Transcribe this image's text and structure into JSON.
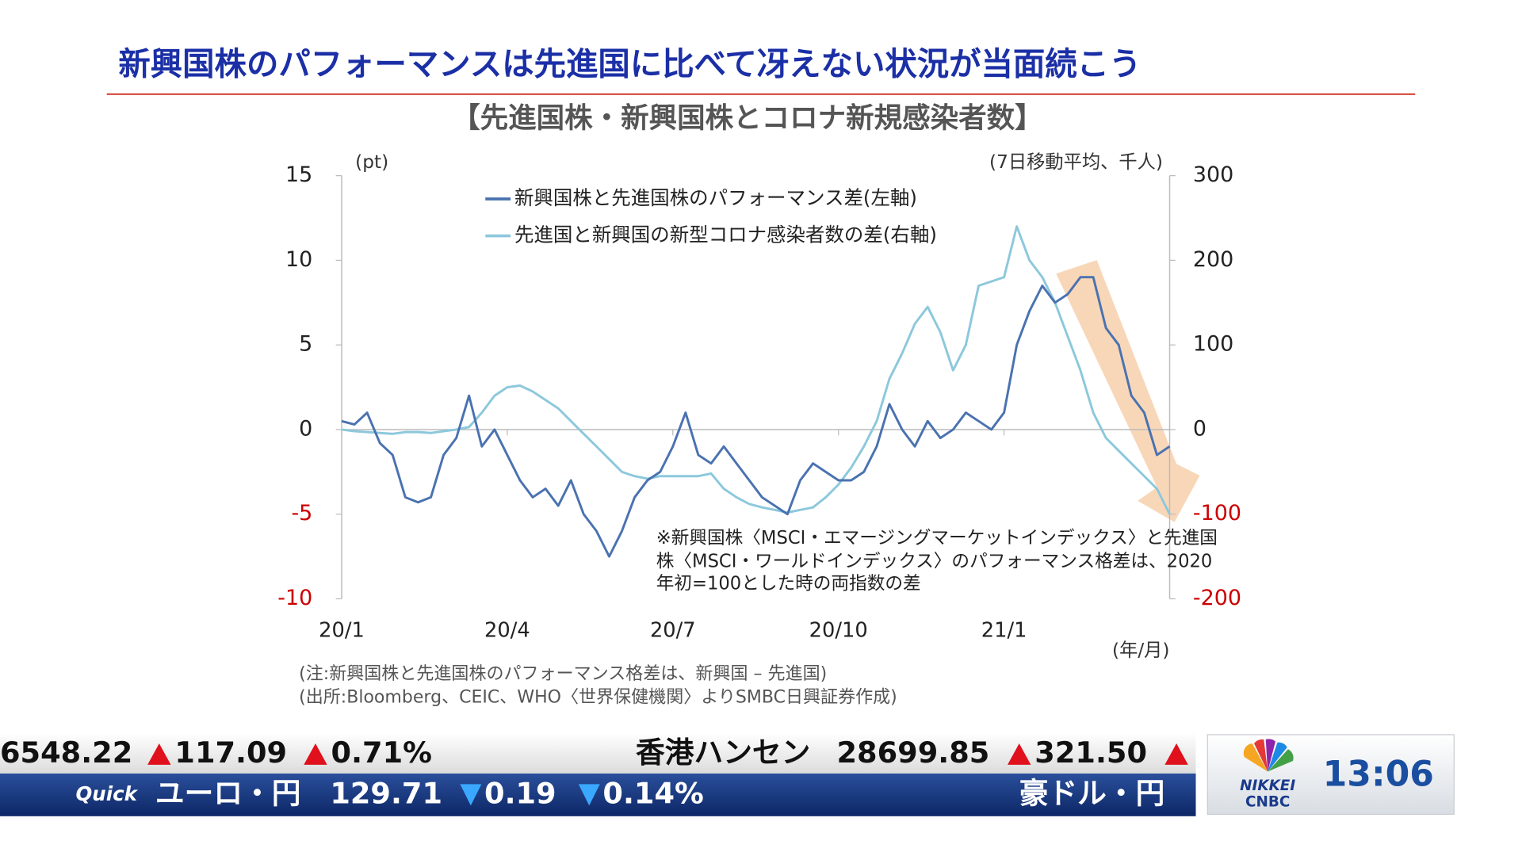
{
  "header": {
    "title": "新興国株のパフォーマンスは先進国に比べて冴えない状況が当面続こう"
  },
  "chart_data": {
    "type": "line",
    "title": "【先進国株・新興国株とコロナ新規感染者数】",
    "ylabel": "(pt)",
    "y2label": "(7日移動平均、千人)",
    "xlabel": "(年/月)",
    "categories": [
      "20/1",
      null,
      null,
      null,
      null,
      null,
      null,
      null,
      null,
      null,
      null,
      null,
      null,
      "20/4",
      null,
      null,
      null,
      null,
      null,
      null,
      null,
      null,
      null,
      null,
      null,
      null,
      "20/7",
      null,
      null,
      null,
      null,
      null,
      null,
      null,
      null,
      null,
      null,
      null,
      null,
      "20/10",
      null,
      null,
      null,
      null,
      null,
      null,
      null,
      null,
      null,
      null,
      null,
      null,
      "21/1",
      null,
      null,
      null,
      null,
      null,
      null,
      null,
      null,
      null,
      null,
      null,
      null,
      null
    ],
    "series": [
      {
        "name": "新興国株と先進国株のパフォーマンス差(左軸)",
        "color": "#4a72b0",
        "axis": "y",
        "values": [
          0.5,
          0.3,
          1.0,
          -0.8,
          -1.5,
          -4.0,
          -4.3,
          -4.0,
          -1.5,
          -0.5,
          2.0,
          -1.0,
          0,
          -1.5,
          -3,
          -4,
          -3.5,
          -4.5,
          -3,
          -5,
          -6,
          -7.5,
          -6,
          -4,
          -3,
          -2.5,
          -1,
          1,
          -1.5,
          -2,
          -1,
          -2,
          -3,
          -4,
          -4.5,
          -5,
          -3,
          -2,
          -2.5,
          -3,
          -3,
          -2.5,
          -1,
          1.5,
          0,
          -1,
          0.5,
          -0.5,
          0,
          1,
          0.5,
          0,
          1,
          5,
          7,
          8.5,
          7.5,
          8,
          9,
          9,
          6,
          5,
          2,
          1,
          -1.5,
          -1
        ]
      },
      {
        "name": "先進国と新興国の新型コロナ感染者数の差(右軸)",
        "color": "#8cc8dc",
        "axis": "y2",
        "values": [
          0,
          -2,
          -3,
          -4,
          -5,
          -3,
          -3,
          -4,
          -2,
          0,
          3,
          20,
          40,
          50,
          52,
          45,
          35,
          25,
          10,
          -5,
          -20,
          -35,
          -50,
          -55,
          -58,
          -55,
          -55,
          -55,
          -55,
          -52,
          -70,
          -80,
          -88,
          -92,
          -95,
          -98,
          -95,
          -92,
          -80,
          -65,
          -45,
          -20,
          10,
          60,
          90,
          125,
          145,
          115,
          70,
          100,
          170,
          175,
          180,
          240,
          200,
          180,
          150,
          110,
          70,
          20,
          -10,
          -25,
          -40,
          -55,
          -70,
          -100
        ]
      }
    ],
    "ylim": [
      -10,
      15
    ],
    "yticks": [
      -10,
      -5,
      0,
      5,
      10,
      15
    ],
    "y2lim": [
      -200,
      300
    ],
    "y2ticks": [
      -200,
      -100,
      0,
      100,
      200,
      300
    ],
    "negative_tick_color": "#cc0000",
    "tick_color": "#222222",
    "annotation": [
      "※新興国株〈MSCI・エマージングマーケットインデックス〉と先進国",
      "株〈MSCI・ワールドインデックス〉のパフォーマンス格差は、2020",
      "年初=100とした時の両指数の差"
    ]
  },
  "notes": [
    "(注:新興国株と先進国株のパフォーマンス格差は、新興国 – 先進国)",
    "(出所:Bloomberg、CEIC、WHO〈世界保健機関〉よりSMBC日興証券作成)"
  ],
  "ticker": {
    "row1": [
      "6548.22",
      "117.09",
      "0.71%",
      "香港ハンセン",
      "28699.85",
      "321.50"
    ],
    "row2": [
      "Quick",
      "ユーロ・円",
      "129.71",
      "0.19",
      "0.14%",
      "豪ドル・円"
    ]
  },
  "clock": {
    "logo": [
      "NIKKEI",
      "CNBC"
    ],
    "time": "13:06"
  }
}
